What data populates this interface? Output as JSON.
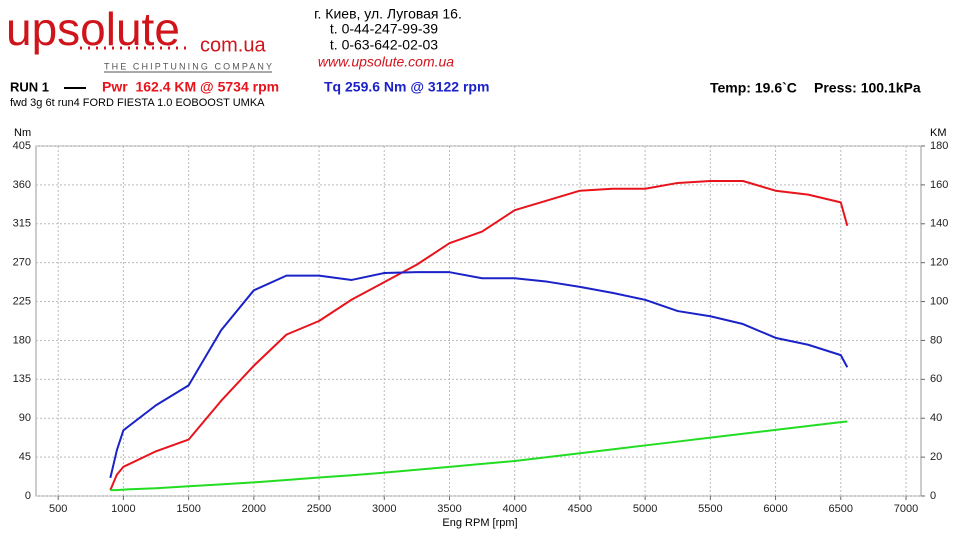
{
  "header": {
    "logo": "upsolute",
    "logo_domain": "com.ua",
    "tagline": "THE CHIPTUNING COMPANY",
    "address": "г. Киев, ул. Луговая 16.",
    "phone1": "t. 0-44-247-99-39",
    "phone2": "t. 0-63-642-02-03",
    "url": "www.upsolute.com.ua"
  },
  "run": {
    "label": "RUN 1",
    "temp": "Temp: 19.6`C",
    "press": "Press: 100.1kPa"
  },
  "chart_data": {
    "type": "line",
    "title": "fwd 3g 6t run4 FORD FIESTA 1.0 EOBOOST UMKA",
    "y_label": "Nm",
    "y2_label": "KM",
    "x_label": "Eng RPM [rpm]",
    "x": [
      900,
      950,
      1000,
      1250,
      1500,
      1750,
      2000,
      2250,
      2500,
      2750,
      3000,
      3250,
      3500,
      3750,
      4000,
      4250,
      4500,
      4750,
      5000,
      5250,
      5500,
      5750,
      6000,
      6250,
      6500,
      6550
    ],
    "series": [
      {
        "name": "Pwr  162.4 KM @ 5734 rpm",
        "color": "#e8141c",
        "axis": "y2",
        "values": [
          3,
          11,
          15,
          23,
          29,
          49,
          67,
          83,
          90,
          101,
          110,
          119,
          130,
          136,
          147,
          152,
          157,
          158,
          158,
          161,
          162,
          162,
          157,
          155,
          151,
          139
        ]
      },
      {
        "name": "Tq 259.6 Nm @ 3122 rpm",
        "color": "#1a22c8",
        "values": [
          21,
          53,
          76,
          105,
          128,
          192,
          238,
          255,
          255,
          250,
          258,
          259,
          259,
          252,
          252,
          248,
          242,
          235,
          227,
          214,
          208,
          199,
          183,
          175,
          163,
          149
        ]
      },
      {
        "color": "#22dd22",
        "axis": "y2",
        "values": [
          3,
          3,
          3.3,
          4,
          5,
          6,
          7,
          8.2,
          9.5,
          10.7,
          12,
          13.5,
          15,
          16.5,
          18,
          20,
          22,
          24,
          26,
          28,
          30,
          32,
          34,
          36,
          38,
          38.3
        ]
      }
    ],
    "xlim": [
      330,
      7115
    ],
    "xticks": [
      500,
      1000,
      1500,
      2000,
      2500,
      3000,
      3500,
      4000,
      4500,
      5000,
      5500,
      6000,
      6500,
      7000
    ],
    "ylim": [
      0,
      405
    ],
    "yticks": [
      0,
      45,
      90,
      135,
      180,
      225,
      270,
      315,
      360,
      405
    ],
    "y2lim": [
      0,
      180
    ],
    "y2ticks": [
      0,
      20,
      40,
      60,
      80,
      100,
      120,
      140,
      160,
      180
    ],
    "grid": true
  }
}
